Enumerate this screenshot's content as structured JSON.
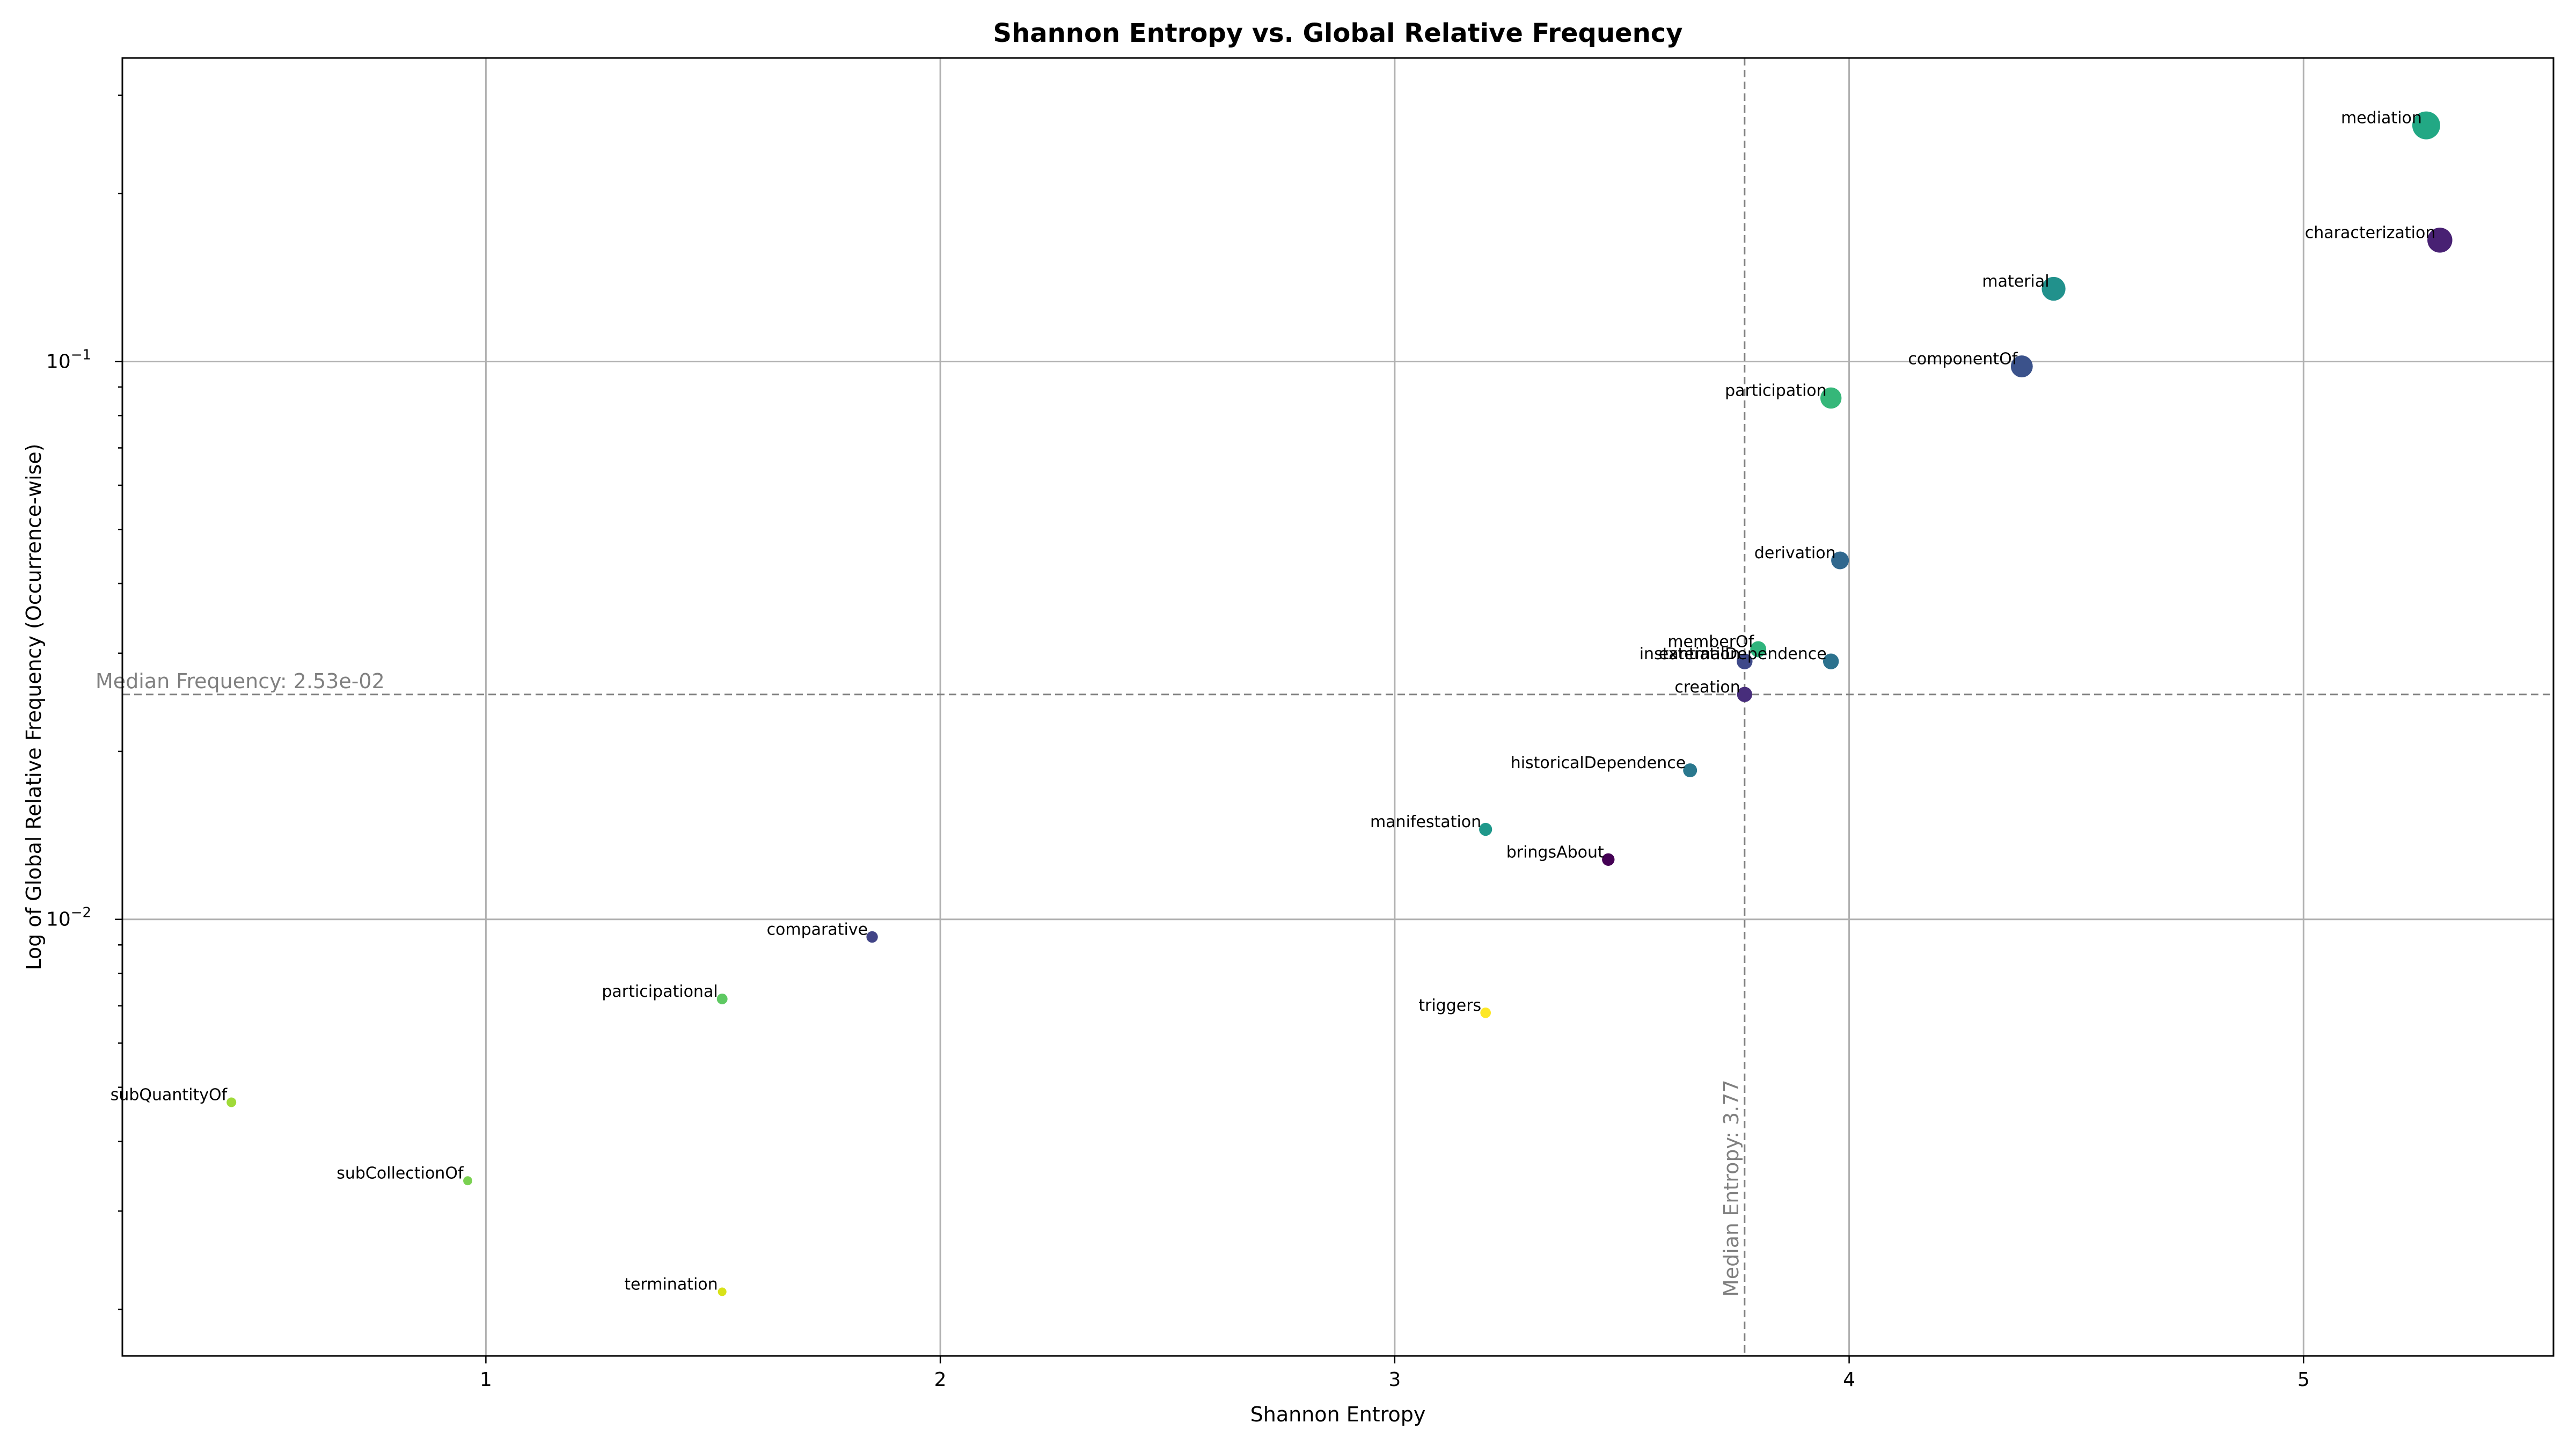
{
  "chart_data": {
    "type": "scatter",
    "title": "Shannon Entropy vs. Global Relative Frequency",
    "xlabel": "Shannon Entropy",
    "ylabel": "Log of Global Relative Frequency (Occurrence-wise)",
    "xlim": [
      0.2,
      5.55
    ],
    "ylim": [
      0.00165,
      0.35
    ],
    "yscale": "log",
    "grid": true,
    "x_ticks": [
      {
        "value": 1,
        "label": "1"
      },
      {
        "value": 2,
        "label": "2"
      },
      {
        "value": 3,
        "label": "3"
      },
      {
        "value": 4,
        "label": "4"
      },
      {
        "value": 5,
        "label": "5"
      }
    ],
    "y_ticks": [
      {
        "value": 0.1,
        "base": "10",
        "exp": "−1"
      },
      {
        "value": 0.01,
        "base": "10",
        "exp": "−2"
      }
    ],
    "median_frequency": {
      "value": 0.0253,
      "label": "Median Frequency: 2.53e-02"
    },
    "median_entropy": {
      "value": 3.77,
      "label": "Median Entropy: 3.77"
    },
    "points": [
      {
        "label": "mediation",
        "x": 5.27,
        "y": 0.265,
        "color": "#22a884"
      },
      {
        "label": "characterization",
        "x": 5.3,
        "y": 0.165,
        "color": "#482173"
      },
      {
        "label": "material",
        "x": 4.45,
        "y": 0.135,
        "color": "#21918c"
      },
      {
        "label": "componentOf",
        "x": 4.38,
        "y": 0.098,
        "color": "#3b528b"
      },
      {
        "label": "participation",
        "x": 3.96,
        "y": 0.086,
        "color": "#35b779"
      },
      {
        "label": "derivation",
        "x": 3.98,
        "y": 0.044,
        "color": "#31688e"
      },
      {
        "label": "memberOf",
        "x": 3.8,
        "y": 0.0305,
        "color": "#2fb47c"
      },
      {
        "label": "instantiation",
        "x": 3.77,
        "y": 0.029,
        "color": "#3e4989"
      },
      {
        "label": "externalDependence",
        "x": 3.96,
        "y": 0.029,
        "color": "#2c728e"
      },
      {
        "label": "creation",
        "x": 3.77,
        "y": 0.0253,
        "color": "#472d7b"
      },
      {
        "label": "historicalDependence",
        "x": 3.65,
        "y": 0.0185,
        "color": "#2a788e"
      },
      {
        "label": "manifestation",
        "x": 3.2,
        "y": 0.0145,
        "color": "#1f988b"
      },
      {
        "label": "bringsAbout",
        "x": 3.47,
        "y": 0.0128,
        "color": "#440154"
      },
      {
        "label": "comparative",
        "x": 1.85,
        "y": 0.0093,
        "color": "#414487"
      },
      {
        "label": "participational",
        "x": 1.52,
        "y": 0.0072,
        "color": "#5ec962"
      },
      {
        "label": "triggers",
        "x": 3.2,
        "y": 0.0068,
        "color": "#fde725"
      },
      {
        "label": "subQuantityOf",
        "x": 0.44,
        "y": 0.0047,
        "color": "#a0da39"
      },
      {
        "label": "subCollectionOf",
        "x": 0.96,
        "y": 0.0034,
        "color": "#7ad151"
      },
      {
        "label": "termination",
        "x": 1.52,
        "y": 0.00215,
        "color": "#d8e219"
      }
    ]
  }
}
